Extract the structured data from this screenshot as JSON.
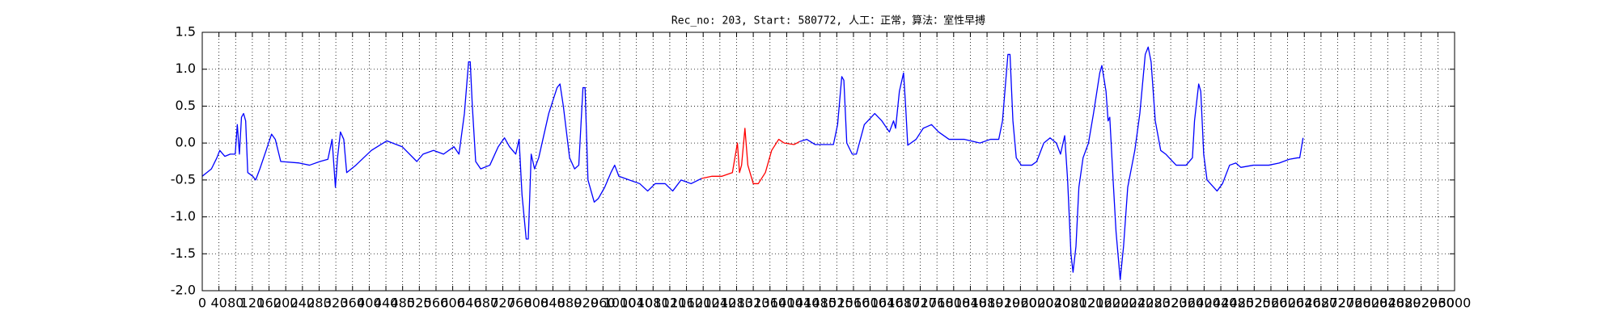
{
  "chart_data": {
    "type": "line",
    "title": "Rec_no: 203, Start: 580772, 人工：正常，算法：室性早搏",
    "xlim": [
      0,
      3000
    ],
    "xticks": [
      0,
      40,
      80,
      120,
      160,
      200,
      240,
      280,
      320,
      360,
      400,
      440,
      480,
      520,
      560,
      600,
      640,
      680,
      720,
      760,
      800,
      840,
      880,
      920,
      960,
      1000,
      1040,
      1080,
      1120,
      1160,
      1200,
      1240,
      1280,
      1320,
      1360,
      1400,
      1440,
      1480,
      1520,
      1560,
      1600,
      1640,
      1680,
      1720,
      1760,
      1800,
      1840,
      1880,
      1920,
      1960,
      2000,
      2040,
      2080,
      2120,
      2160,
      2200,
      2240,
      2280,
      2320,
      2360,
      2400,
      2440,
      2480,
      2520,
      2560,
      2600,
      2640,
      2680,
      2720,
      2760,
      2800,
      2840,
      2880,
      2920,
      2960,
      3000
    ],
    "ylim": [
      -2,
      1.5
    ],
    "yticks": [
      {
        "value": -2,
        "label": "-2.0"
      },
      -1.5,
      {
        "value": -1,
        "label": "-1.0"
      },
      -0.5,
      {
        "value": 0,
        "label": "0.0"
      },
      0.5,
      {
        "value": 1,
        "label": "1.0"
      },
      1.5
    ],
    "grid": true,
    "series": [
      {
        "color": "#0000ff",
        "x": [
          0,
          22,
          35,
          42,
          54,
          67,
          79,
          84,
          89,
          94,
          99,
          104,
          109,
          121,
          128,
          138,
          153,
          166,
          175,
          188,
          232,
          257,
          282,
          301,
          311,
          319,
          324,
          331,
          339,
          346,
          368,
          405,
          442,
          479,
          514,
          529,
          554,
          578,
          603,
          615,
          628,
          638,
          642,
          647,
          655,
          667,
          689,
          709,
          724,
          736,
          751,
          759,
          766,
          776,
          781,
          788,
          796,
          806,
          830,
          850,
          857,
          865,
          880,
          892,
          902,
          912,
          917,
          924,
          939,
          949,
          964,
          979,
          988,
          998,
          1023,
          1048,
          1067,
          1085,
          1109,
          1127,
          1147,
          1171,
          1196
        ],
        "values": [
          -0.45,
          -0.35,
          -0.2,
          -0.1,
          -0.18,
          -0.15,
          -0.15,
          0.25,
          -0.15,
          0.35,
          0.4,
          0.3,
          -0.4,
          -0.45,
          -0.5,
          -0.35,
          -0.1,
          0.12,
          0.05,
          -0.25,
          -0.27,
          -0.3,
          -0.25,
          -0.22,
          0.05,
          -0.6,
          -0.2,
          0.15,
          0.05,
          -0.4,
          -0.3,
          -0.1,
          0.03,
          -0.05,
          -0.25,
          -0.15,
          -0.1,
          -0.15,
          -0.05,
          -0.15,
          0.4,
          1.1,
          1.1,
          0.5,
          -0.25,
          -0.35,
          -0.3,
          -0.05,
          0.07,
          -0.05,
          -0.15,
          0.05,
          -0.7,
          -1.3,
          -1.3,
          -0.15,
          -0.35,
          -0.2,
          0.4,
          0.75,
          0.8,
          0.5,
          -0.2,
          -0.35,
          -0.3,
          0.75,
          0.75,
          -0.5,
          -0.8,
          -0.75,
          -0.6,
          -0.4,
          -0.3,
          -0.45,
          -0.5,
          -0.55,
          -0.65,
          -0.55,
          -0.55,
          -0.65,
          -0.5,
          -0.55,
          -0.48
        ]
      },
      {
        "color": "#ff0000",
        "x": [
          1196,
          1221,
          1245,
          1270,
          1282,
          1287,
          1292,
          1300,
          1307,
          1320,
          1332,
          1349,
          1364,
          1381,
          1394,
          1418,
          1431
        ],
        "values": [
          -0.48,
          -0.45,
          -0.45,
          -0.4,
          0.0,
          -0.4,
          -0.3,
          0.2,
          -0.3,
          -0.55,
          -0.55,
          -0.4,
          -0.1,
          0.05,
          0.0,
          -0.02,
          0.02
        ]
      },
      {
        "color": "#0000ff",
        "x": [
          1431,
          1448,
          1468,
          1492,
          1512,
          1522,
          1532,
          1537,
          1544,
          1557,
          1567,
          1586,
          1611,
          1628,
          1646,
          1656,
          1661,
          1670,
          1680,
          1685,
          1690,
          1710,
          1727,
          1747,
          1764,
          1789,
          1826,
          1863,
          1888,
          1908,
          1917,
          1930,
          1935,
          1942,
          1950,
          1962,
          1987,
          1999,
          2016,
          2031,
          2046,
          2056,
          2066,
          2073,
          2081,
          2086,
          2093,
          2100,
          2110,
          2123,
          2135,
          2150,
          2155,
          2165,
          2170,
          2174,
          2182,
          2189,
          2199,
          2207,
          2217,
          2234,
          2246,
          2259,
          2266,
          2273,
          2283,
          2296,
          2308,
          2333,
          2357,
          2372,
          2377,
          2387,
          2392,
          2399,
          2407,
          2431,
          2444,
          2461,
          2476,
          2488,
          2518,
          2555,
          2580,
          2604,
          2624,
          2629,
          2637
        ],
        "values": [
          0.02,
          0.05,
          -0.02,
          -0.02,
          -0.02,
          0.25,
          0.9,
          0.85,
          0.0,
          -0.15,
          -0.15,
          0.25,
          0.4,
          0.3,
          0.15,
          0.3,
          0.2,
          0.7,
          0.95,
          0.5,
          -0.03,
          0.05,
          0.2,
          0.25,
          0.15,
          0.05,
          0.05,
          0.0,
          0.05,
          0.05,
          0.3,
          1.2,
          1.2,
          0.3,
          -0.2,
          -0.3,
          -0.3,
          -0.25,
          0.0,
          0.07,
          0.0,
          -0.15,
          0.1,
          -0.5,
          -1.5,
          -1.75,
          -1.4,
          -0.6,
          -0.2,
          0.0,
          0.4,
          0.95,
          1.05,
          0.7,
          0.3,
          0.35,
          -0.5,
          -1.2,
          -1.85,
          -1.4,
          -0.6,
          -0.1,
          0.4,
          1.2,
          1.3,
          1.1,
          0.3,
          -0.1,
          -0.15,
          -0.3,
          -0.3,
          -0.2,
          0.3,
          0.8,
          0.7,
          -0.15,
          -0.5,
          -0.65,
          -0.55,
          -0.3,
          -0.27,
          -0.33,
          -0.3,
          -0.3,
          -0.27,
          -0.22,
          -0.2,
          -0.2,
          0.07
        ]
      }
    ]
  }
}
